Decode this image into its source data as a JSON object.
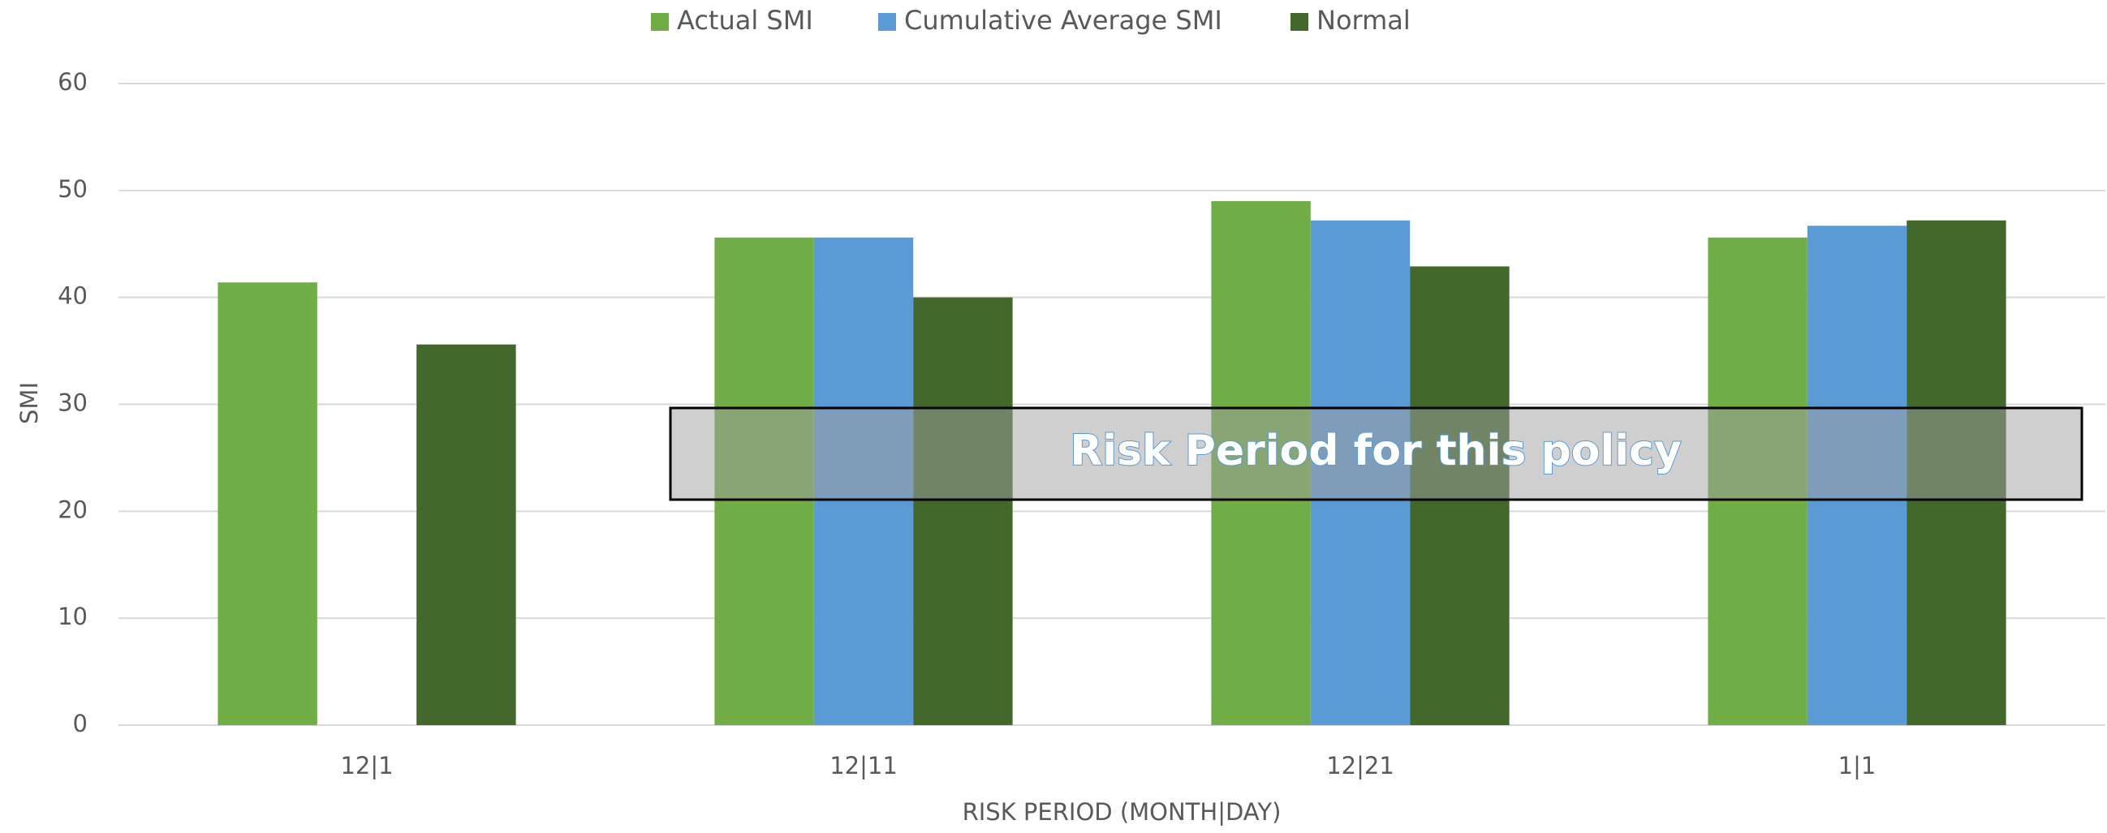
{
  "chart_data": {
    "type": "bar",
    "categories": [
      "12|1",
      "12|11",
      "12|21",
      "1|1"
    ],
    "series": [
      {
        "name": "Actual SMI",
        "color": "#70ad47",
        "values": [
          41.4,
          45.6,
          49,
          45.6
        ]
      },
      {
        "name": "Cumulative Average SMI",
        "color": "#5b9bd5",
        "values": [
          null,
          45.6,
          47.2,
          46.7
        ]
      },
      {
        "name": "Normal",
        "color": "#43682b",
        "values": [
          35.6,
          40,
          42.9,
          47.2
        ]
      }
    ],
    "ylim": [
      0,
      60
    ],
    "yticks": [
      0,
      10,
      20,
      30,
      40,
      50,
      60
    ],
    "grid": true,
    "y_label": "SMI",
    "x_label": "RISK PERIOD (MONTH|DAY)",
    "legend": "top",
    "annotation": "Risk Period for this policy"
  }
}
